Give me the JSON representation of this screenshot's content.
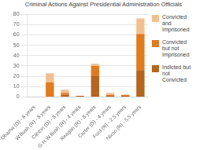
{
  "chart_data": {
    "type": "bar",
    "title": "Criminal Actions Against Presidential Administration Officials",
    "categories": [
      "Obama (D) - 8 years",
      "W.Bush (R) - 8 years",
      "Clinton (D) - 8 years",
      "G.H.W.Bush (R) - 4 years",
      "Reagan (R) - 8 years",
      "Carter (D) - 4 years",
      "Ford (R) - 2.5 years",
      "Nixon (R) - 5.5 years"
    ],
    "series": [
      {
        "name": "Indicted but\nnot\nConvicted",
        "color": "#b5651d",
        "values": [
          0,
          0,
          2,
          1,
          20,
          1,
          1,
          26
        ]
      },
      {
        "name": "Convicted\nbut not\nImprisoned",
        "color": "#e07b20",
        "values": [
          0,
          14,
          2,
          0,
          10,
          1,
          1,
          35
        ]
      },
      {
        "name": "Convicted\nand\nImprisoned",
        "color": "#f2c090",
        "values": [
          0,
          9,
          3,
          0,
          2,
          2,
          0,
          15
        ]
      }
    ],
    "stacked": true,
    "ylim": [
      0,
      80
    ],
    "yticks": [
      0,
      10,
      20,
      30,
      40,
      50,
      60,
      70,
      80
    ],
    "grid": true,
    "legend": "right"
  }
}
